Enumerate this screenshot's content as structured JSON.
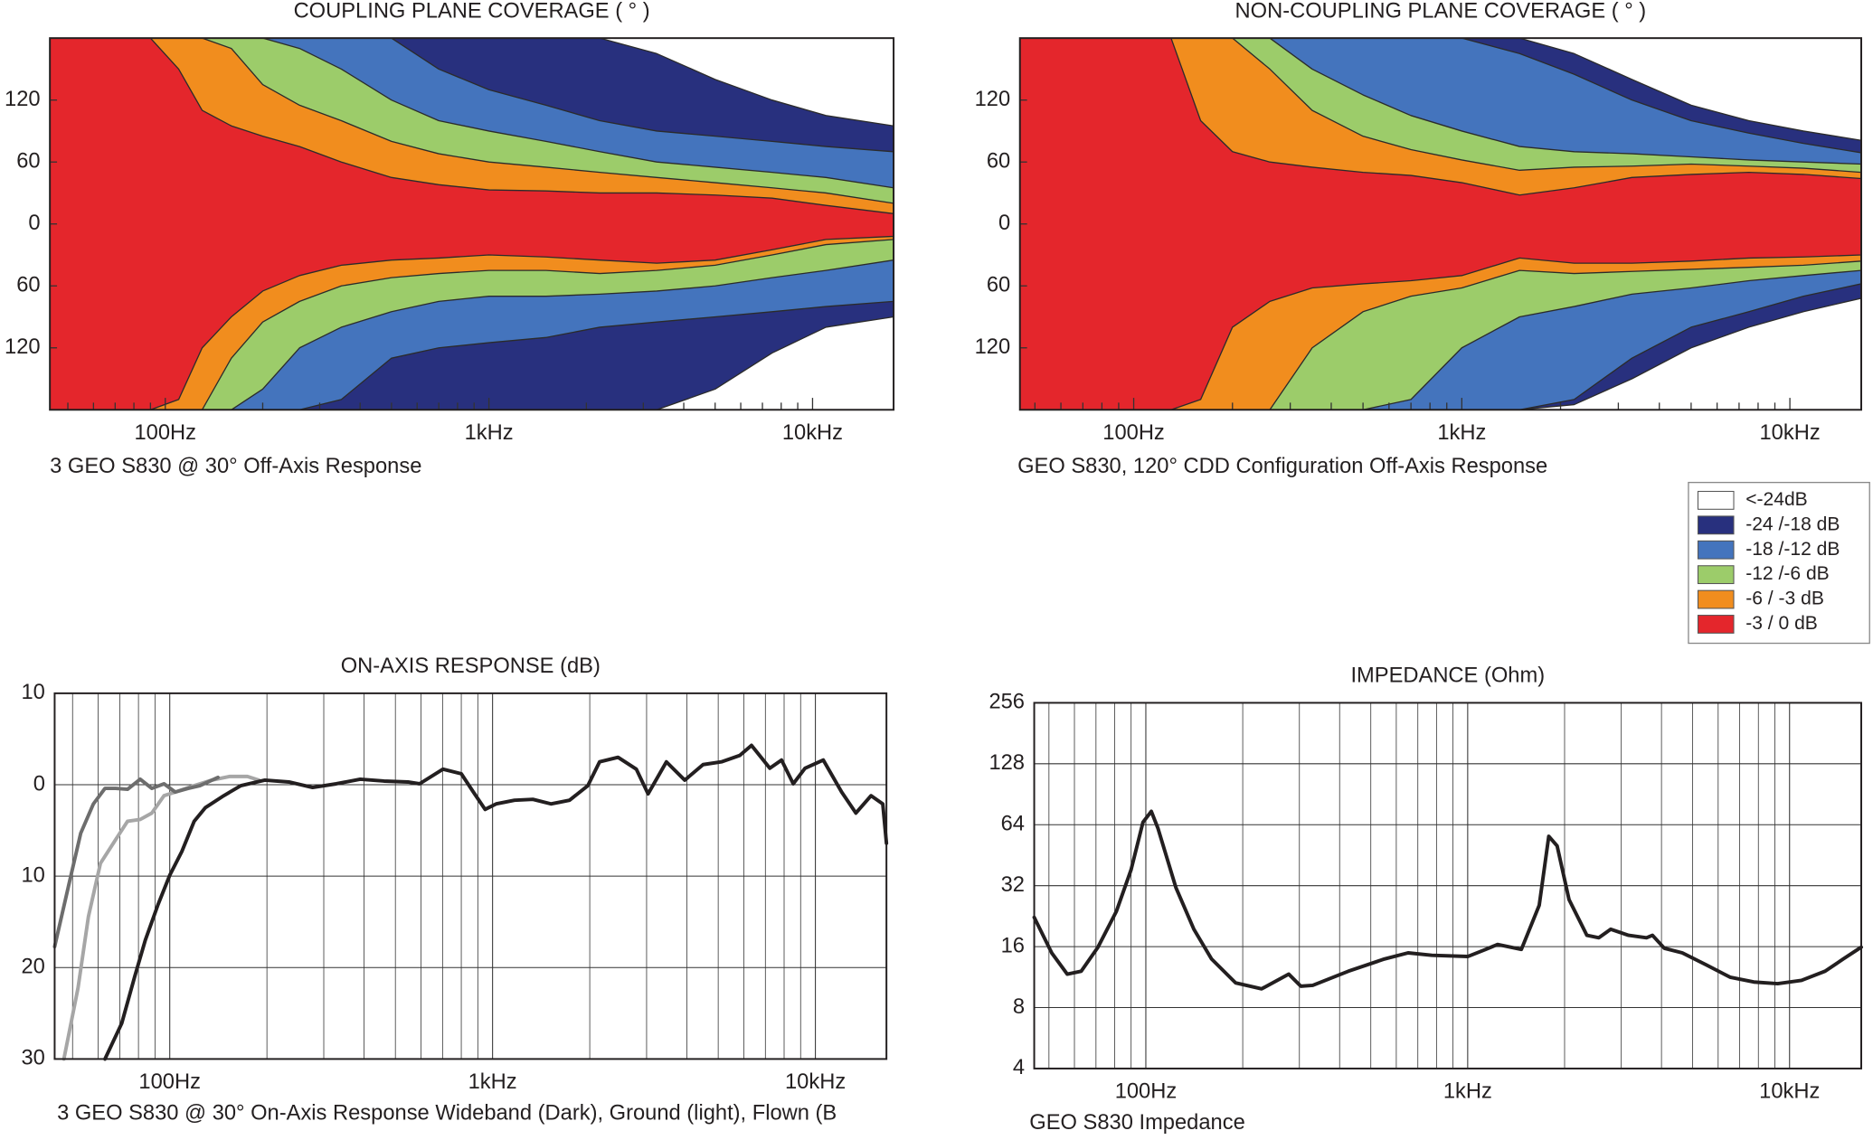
{
  "chart_data": [
    {
      "type": "contour",
      "title": "COUPLING PLANE COVERAGE ( ° )",
      "caption": "3 GEO S830 @ 30°  Off-Axis Response",
      "xscale": "log",
      "xlim": [
        44,
        17800
      ],
      "ylim": [
        -180,
        180
      ],
      "grid": false,
      "xticks": [
        {
          "value": 100,
          "label": "100Hz"
        },
        {
          "value": 1000,
          "label": "1kHz"
        },
        {
          "value": 10000,
          "label": "10kHz"
        }
      ],
      "xminor": [
        50,
        60,
        70,
        80,
        90,
        200,
        300,
        400,
        500,
        600,
        700,
        800,
        900,
        2000,
        3000,
        4000,
        5000,
        6000,
        7000,
        8000,
        9000
      ],
      "yticks": [
        120,
        60,
        0,
        {
          "value": -60,
          "label": "60"
        },
        {
          "value": -120,
          "label": "120"
        }
      ],
      "x": [
        44,
        70,
        90,
        110,
        130,
        160,
        200,
        260,
        350,
        500,
        700,
        1000,
        1500,
        2200,
        3300,
        5000,
        7500,
        11000,
        17800
      ],
      "series": [
        {
          "color": "#28307e",
          "upper": [
            180,
            180,
            180,
            180,
            180,
            180,
            180,
            180,
            180,
            180,
            180,
            180,
            180,
            180,
            165,
            140,
            120,
            105,
            95
          ],
          "lower": [
            -180,
            -180,
            -180,
            -180,
            -180,
            -180,
            -180,
            -180,
            -180,
            -180,
            -180,
            -180,
            -180,
            -180,
            -180,
            -160,
            -125,
            -100,
            -90
          ]
        },
        {
          "color": "#4474bd",
          "upper": [
            180,
            180,
            180,
            180,
            180,
            180,
            180,
            180,
            180,
            180,
            150,
            130,
            115,
            100,
            90,
            85,
            80,
            75,
            70
          ],
          "lower": [
            -180,
            -180,
            -180,
            -180,
            -180,
            -180,
            -180,
            -180,
            -170,
            -130,
            -120,
            -115,
            -110,
            -100,
            -95,
            -90,
            -85,
            -80,
            -75
          ]
        },
        {
          "color": "#9ccc6a",
          "upper": [
            180,
            180,
            180,
            180,
            180,
            180,
            180,
            170,
            150,
            120,
            100,
            90,
            80,
            70,
            60,
            55,
            50,
            45,
            35
          ],
          "lower": [
            -180,
            -180,
            -180,
            -180,
            -180,
            -180,
            -160,
            -120,
            -100,
            -85,
            -75,
            -70,
            -70,
            -68,
            -65,
            -60,
            -52,
            -45,
            -35
          ]
        },
        {
          "color": "#f18d1e",
          "upper": [
            180,
            180,
            180,
            180,
            180,
            170,
            135,
            115,
            100,
            80,
            68,
            60,
            55,
            50,
            45,
            40,
            35,
            30,
            20
          ],
          "lower": [
            -180,
            -180,
            -180,
            -180,
            -180,
            -130,
            -95,
            -75,
            -60,
            -52,
            -48,
            -45,
            -45,
            -48,
            -45,
            -40,
            -30,
            -20,
            -15
          ]
        },
        {
          "color": "#e4262c",
          "upper": [
            180,
            180,
            180,
            150,
            110,
            95,
            85,
            75,
            60,
            45,
            38,
            33,
            32,
            30,
            30,
            28,
            25,
            18,
            10
          ],
          "lower": [
            -180,
            -180,
            -180,
            -170,
            -120,
            -90,
            -65,
            -50,
            -40,
            -35,
            -33,
            -30,
            -32,
            -35,
            -38,
            -35,
            -25,
            -15,
            -12
          ]
        }
      ]
    },
    {
      "type": "contour",
      "title": "NON-COUPLING PLANE COVERAGE ( ° )",
      "caption": "GEO S830, 120°  CDD Configuration Off-Axis Response",
      "xscale": "log",
      "xlim": [
        45,
        16500
      ],
      "ylim": [
        -180,
        180
      ],
      "grid": false,
      "xticks": [
        {
          "value": 100,
          "label": "100Hz"
        },
        {
          "value": 1000,
          "label": "1kHz"
        },
        {
          "value": 10000,
          "label": "10kHz"
        }
      ],
      "xminor": [
        50,
        60,
        70,
        80,
        90,
        200,
        300,
        400,
        500,
        600,
        700,
        800,
        900,
        2000,
        3000,
        4000,
        5000,
        6000,
        7000,
        8000,
        9000
      ],
      "yticks": [
        120,
        60,
        0,
        {
          "value": -60,
          "label": "60"
        },
        {
          "value": -120,
          "label": "120"
        }
      ],
      "x": [
        45,
        70,
        90,
        110,
        130,
        160,
        200,
        260,
        350,
        500,
        700,
        1000,
        1500,
        2200,
        3300,
        5000,
        7500,
        11000,
        16500
      ],
      "series": [
        {
          "color": "#28307e",
          "upper": [
            180,
            180,
            180,
            180,
            180,
            180,
            180,
            180,
            180,
            180,
            180,
            180,
            180,
            165,
            140,
            115,
            100,
            90,
            81
          ],
          "lower": [
            -180,
            -180,
            -180,
            -180,
            -180,
            -180,
            -180,
            -180,
            -180,
            -180,
            -180,
            -180,
            -180,
            -175,
            -150,
            -120,
            -100,
            -85,
            -72
          ]
        },
        {
          "color": "#4474bd",
          "upper": [
            180,
            180,
            180,
            180,
            180,
            180,
            180,
            180,
            180,
            180,
            180,
            180,
            165,
            145,
            120,
            100,
            88,
            78,
            69
          ],
          "lower": [
            -180,
            -180,
            -180,
            -180,
            -180,
            -180,
            -180,
            -180,
            -180,
            -180,
            -180,
            -180,
            -180,
            -170,
            -130,
            -100,
            -85,
            -70,
            -58
          ]
        },
        {
          "color": "#9ccc6a",
          "upper": [
            180,
            180,
            180,
            180,
            180,
            180,
            180,
            180,
            150,
            125,
            105,
            90,
            75,
            70,
            68,
            65,
            62,
            60,
            58
          ],
          "lower": [
            -180,
            -180,
            -180,
            -180,
            -180,
            -180,
            -180,
            -180,
            -180,
            -180,
            -170,
            -120,
            -90,
            -80,
            -68,
            -62,
            -55,
            -50,
            -45
          ]
        },
        {
          "color": "#f18d1e",
          "upper": [
            180,
            180,
            180,
            180,
            180,
            180,
            180,
            150,
            110,
            85,
            72,
            62,
            52,
            55,
            56,
            58,
            56,
            54,
            50
          ],
          "lower": [
            -180,
            -180,
            -180,
            -180,
            -180,
            -180,
            -180,
            -180,
            -120,
            -85,
            -70,
            -62,
            -45,
            -48,
            -46,
            -44,
            -42,
            -40,
            -36
          ]
        },
        {
          "color": "#e4262c",
          "upper": [
            180,
            180,
            180,
            180,
            180,
            100,
            70,
            60,
            55,
            50,
            47,
            40,
            28,
            35,
            45,
            48,
            50,
            48,
            44
          ],
          "lower": [
            -180,
            -180,
            -180,
            -180,
            -180,
            -170,
            -100,
            -75,
            -62,
            -58,
            -55,
            -50,
            -33,
            -38,
            -38,
            -36,
            -33,
            -32,
            -30
          ]
        }
      ]
    },
    {
      "type": "line",
      "title": "ON-AXIS RESPONSE (dB)",
      "caption": "3 GEO S830 @ 30°  On-Axis Response Wideband (Dark), Ground (light), Flown (B",
      "xscale": "log",
      "xlim": [
        44,
        16600
      ],
      "ylim": [
        -30,
        10
      ],
      "grid": true,
      "xticks": [
        {
          "value": 100,
          "label": "100Hz"
        },
        {
          "value": 1000,
          "label": "1kHz"
        },
        {
          "value": 10000,
          "label": "10kHz"
        }
      ],
      "xminor": [
        50,
        60,
        70,
        80,
        90,
        200,
        300,
        400,
        500,
        600,
        700,
        800,
        900,
        2000,
        3000,
        4000,
        5000,
        6000,
        7000,
        8000,
        9000
      ],
      "yticks": [
        10,
        0,
        {
          "value": -10,
          "label": "10"
        },
        {
          "value": -20,
          "label": "20"
        },
        {
          "value": -30,
          "label": "30"
        }
      ],
      "series": [
        {
          "color": "#a6a6a6",
          "x": [
            47,
            52,
            56,
            61,
            68,
            74,
            81,
            88,
            96,
            104,
            119,
            135,
            153,
            174,
            189
          ],
          "values": [
            -30,
            -22.2,
            -14.4,
            -8.6,
            -6,
            -4,
            -3.8,
            -3.1,
            -1.2,
            -0.8,
            -0.1,
            0.5,
            0.9,
            0.9,
            0.5
          ]
        },
        {
          "color": "#6d6d6d",
          "x": [
            44,
            49,
            53,
            58,
            63,
            68,
            74,
            81,
            88,
            96,
            104,
            114,
            124,
            141
          ],
          "values": [
            -17.7,
            -10.5,
            -5.3,
            -2.1,
            -0.4,
            -0.4,
            -0.5,
            0.6,
            -0.4,
            0.1,
            -0.8,
            -0.4,
            -0.1,
            0.8
          ]
        },
        {
          "color": "#231f20",
          "x": [
            63,
            71,
            78,
            84,
            92,
            100,
            109,
            119,
            129,
            147,
            166,
            197,
            234,
            277,
            328,
            389,
            461,
            547,
            594,
            702,
            800,
            872,
            948,
            1026,
            1169,
            1333,
            1519,
            1731,
            1973,
            2145,
            2447,
            2788,
            3032,
            3455,
            3938,
            4488,
            5115,
            5830,
            6340,
            7225,
            7855,
            8541,
            9286,
            10580,
            12060,
            13350,
            14870,
            16170,
            16600
          ],
          "values": [
            -30,
            -26.1,
            -20.9,
            -17,
            -13.1,
            -9.9,
            -7.3,
            -4,
            -2.5,
            -1.2,
            -0.1,
            0.5,
            0.3,
            -0.3,
            0.1,
            0.6,
            0.4,
            0.3,
            0.1,
            1.7,
            1.2,
            -0.8,
            -2.7,
            -2.1,
            -1.7,
            -1.6,
            -2.1,
            -1.7,
            -0.1,
            2.5,
            3,
            1.7,
            -1,
            2.5,
            0.5,
            2.2,
            2.5,
            3.2,
            4.3,
            1.8,
            2.7,
            0.1,
            1.8,
            2.7,
            -0.8,
            -3.1,
            -1.2,
            -2.1,
            -6.4
          ]
        }
      ]
    },
    {
      "type": "line",
      "title": "IMPEDANCE (Ohm)",
      "caption": "GEO S830 Impedance",
      "xscale": "log",
      "yscale": "log",
      "xlim": [
        45,
        16700
      ],
      "ylim": [
        4,
        256
      ],
      "grid": true,
      "xticks": [
        {
          "value": 100,
          "label": "100Hz"
        },
        {
          "value": 1000,
          "label": "1kHz"
        },
        {
          "value": 10000,
          "label": "10kHz"
        }
      ],
      "xminor": [
        50,
        60,
        70,
        80,
        90,
        200,
        300,
        400,
        500,
        600,
        700,
        800,
        900,
        2000,
        3000,
        4000,
        5000,
        6000,
        7000,
        8000,
        9000
      ],
      "yticks": [
        256,
        128,
        64,
        32,
        16,
        8,
        4
      ],
      "series": [
        {
          "color": "#231f20",
          "x": [
            45,
            51,
            57,
            63,
            71,
            81,
            90,
            98,
            104,
            109,
            124,
            141,
            160,
            190,
            229,
            278,
            303,
            330,
            426,
            551,
            653,
            774,
            1000,
            1137,
            1238,
            1468,
            1668,
            1786,
            1896,
            2065,
            2346,
            2555,
            2782,
            3162,
            3594,
            3750,
            4084,
            4642,
            5508,
            6534,
            7743,
            9183,
            10890,
            12900,
            14680,
            16700
          ],
          "values": [
            22.3,
            14.9,
            11.7,
            12.1,
            15.9,
            23.9,
            38.4,
            65.9,
            74.5,
            61.6,
            31.3,
            19.5,
            13.9,
            10.6,
            9.9,
            11.7,
            10.2,
            10.3,
            12.1,
            13.9,
            14.9,
            14.5,
            14.3,
            15.5,
            16.4,
            15.5,
            25.6,
            56.1,
            50.3,
            27.3,
            18.2,
            17.7,
            19.5,
            18.2,
            17.7,
            18.2,
            15.7,
            14.9,
            13,
            11.3,
            10.7,
            10.5,
            10.9,
            12.1,
            13.9,
            15.9
          ]
        }
      ]
    }
  ],
  "legend": {
    "entries": [
      {
        "label": "<-24dB",
        "color": "#ffffff"
      },
      {
        "label": "-24 /-18 dB",
        "color": "#28307e"
      },
      {
        "label": "-18 /-12 dB",
        "color": "#4474bd"
      },
      {
        "label": "-12 /-6 dB",
        "color": "#9ccc6a"
      },
      {
        "label": "-6 / -3 dB",
        "color": "#f18d1e"
      },
      {
        "label": "-3 / 0 dB",
        "color": "#e4262c"
      }
    ]
  }
}
